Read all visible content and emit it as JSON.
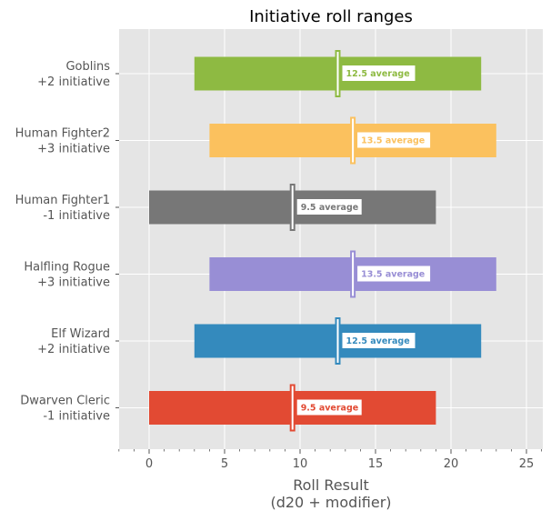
{
  "chart_data": {
    "type": "bar",
    "orientation": "horizontal",
    "title": "Initiative roll ranges",
    "xlabel_lines": [
      "Roll Result",
      "(d20 + modifier)"
    ],
    "ylabel": "",
    "xlim": [
      -2,
      26
    ],
    "xticks": [
      0,
      5,
      10,
      15,
      20,
      25
    ],
    "grid": true,
    "legend": "none",
    "categories": [
      {
        "name": "Goblins",
        "modifier_label": "+2 initiative",
        "min": 3,
        "max": 22,
        "average": 12.5,
        "average_label": "12.5 average",
        "color": "#8eba42"
      },
      {
        "name": "Human Fighter2",
        "modifier_label": "+3 initiative",
        "min": 4,
        "max": 23,
        "average": 13.5,
        "average_label": "13.5 average",
        "color": "#fbc15e"
      },
      {
        "name": "Human Fighter1",
        "modifier_label": "-1 initiative",
        "min": 0,
        "max": 19,
        "average": 9.5,
        "average_label": "9.5 average",
        "color": "#777777"
      },
      {
        "name": "Halfling Rogue",
        "modifier_label": "+3 initiative",
        "min": 4,
        "max": 23,
        "average": 13.5,
        "average_label": "13.5 average",
        "color": "#988ed5"
      },
      {
        "name": "Elf Wizard",
        "modifier_label": "+2 initiative",
        "min": 3,
        "max": 22,
        "average": 12.5,
        "average_label": "12.5 average",
        "color": "#348abd"
      },
      {
        "name": "Dwarven Cleric",
        "modifier_label": "-1 initiative",
        "min": 0,
        "max": 19,
        "average": 9.5,
        "average_label": "9.5 average",
        "color": "#e24a33"
      }
    ]
  }
}
